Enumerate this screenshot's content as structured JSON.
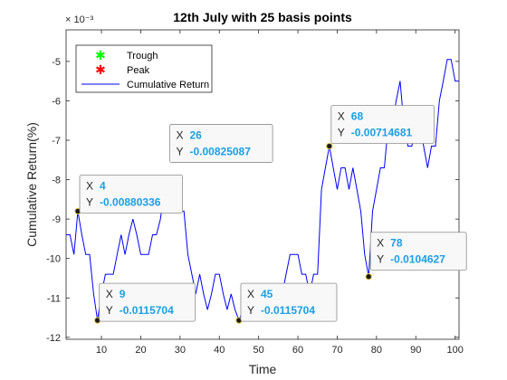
{
  "chart_data": {
    "type": "line",
    "title": "12th July with 25 basis points",
    "xlabel": "Time",
    "ylabel": "Cumulative Return(%)",
    "exponent_label": "× 10⁻³",
    "xlim": [
      1,
      101
    ],
    "ylim": [
      -12.05,
      -4.2
    ],
    "xticks": [
      10,
      20,
      30,
      40,
      50,
      60,
      70,
      80,
      90,
      100
    ],
    "yticks": [
      -12,
      -11,
      -10,
      -9,
      -8,
      -7,
      -6,
      -5
    ],
    "grid": false,
    "legend": {
      "position": "top-left",
      "entries": [
        {
          "label": "Trough",
          "marker": "*",
          "color": "#00ff00"
        },
        {
          "label": "Peak",
          "marker": "*",
          "color": "#ff0000"
        },
        {
          "label": "Cumulative Return",
          "marker": "line",
          "color": "#0000ff"
        }
      ]
    },
    "series": [
      {
        "color": "#0000ff",
        "x": [
          1,
          2,
          3,
          4,
          5,
          6,
          7,
          8,
          9,
          10,
          11,
          12,
          13,
          14,
          15,
          16,
          17,
          18,
          19,
          20,
          21,
          22,
          23,
          24,
          25,
          26,
          27,
          28,
          29,
          30,
          31,
          32,
          33,
          34,
          35,
          36,
          37,
          38,
          39,
          40,
          41,
          42,
          43,
          44,
          45,
          46,
          47,
          48,
          49,
          50,
          51,
          52,
          53,
          54,
          55,
          56,
          57,
          58,
          59,
          60,
          61,
          62,
          63,
          64,
          65,
          66,
          67,
          68,
          69,
          70,
          71,
          72,
          73,
          74,
          75,
          76,
          77,
          78,
          79,
          80,
          81,
          82,
          83,
          84,
          85,
          86,
          87,
          88,
          89,
          90,
          91,
          92,
          93,
          94,
          95,
          96,
          97,
          98,
          99,
          100,
          101
        ],
        "y": [
          -9.4,
          -9.4,
          -9.9,
          -8.8,
          -9.4,
          -9.9,
          -9.9,
          -10.9,
          -11.57,
          -10.9,
          -10.4,
          -10.4,
          -10.4,
          -9.9,
          -9.4,
          -9.9,
          -9.4,
          -9.0,
          -9.4,
          -9.9,
          -9.9,
          -9.9,
          -9.4,
          -9.4,
          -9.0,
          -8.25,
          -8.8,
          -8.8,
          -8.8,
          -8.8,
          -8.8,
          -9.9,
          -10.4,
          -10.9,
          -10.4,
          -10.9,
          -11.3,
          -10.9,
          -10.4,
          -10.4,
          -10.9,
          -11.3,
          -10.9,
          -11.3,
          -11.57,
          -11.3,
          -10.9,
          -10.9,
          -11.57,
          -11.57,
          -11.57,
          -11.57,
          -11.57,
          -11.57,
          -11.3,
          -10.9,
          -10.4,
          -9.9,
          -9.9,
          -9.9,
          -10.4,
          -10.4,
          -10.9,
          -10.4,
          -10.4,
          -8.25,
          -7.7,
          -7.15,
          -7.7,
          -8.25,
          -7.7,
          -7.7,
          -8.25,
          -7.7,
          -8.25,
          -8.8,
          -9.9,
          -10.46,
          -8.8,
          -8.25,
          -7.7,
          -7.7,
          -6.6,
          -6.6,
          -6.0,
          -5.5,
          -6.6,
          -7.15,
          -7.15,
          -6.6,
          -6.6,
          -7.15,
          -7.7,
          -7.15,
          -7.15,
          -6.0,
          -5.5,
          -4.95,
          -4.95,
          -5.5,
          -5.5
        ]
      }
    ],
    "annotations": [
      {
        "x": 4,
        "y": -8.8,
        "x_text": "4",
        "y_text": "-0.00880336"
      },
      {
        "x": 9,
        "y": -11.57,
        "x_text": "9",
        "y_text": "-0.0115704"
      },
      {
        "x": 26,
        "y": -8.25,
        "x_text": "26",
        "y_text": "-0.00825087"
      },
      {
        "x": 45,
        "y": -11.57,
        "x_text": "45",
        "y_text": "-0.0115704"
      },
      {
        "x": 68,
        "y": -7.15,
        "x_text": "68",
        "y_text": "-0.00714681"
      },
      {
        "x": 78,
        "y": -10.46,
        "x_text": "78",
        "y_text": "-0.0104627"
      }
    ],
    "datatip_x_prefix": "X",
    "datatip_y_prefix": "Y"
  }
}
